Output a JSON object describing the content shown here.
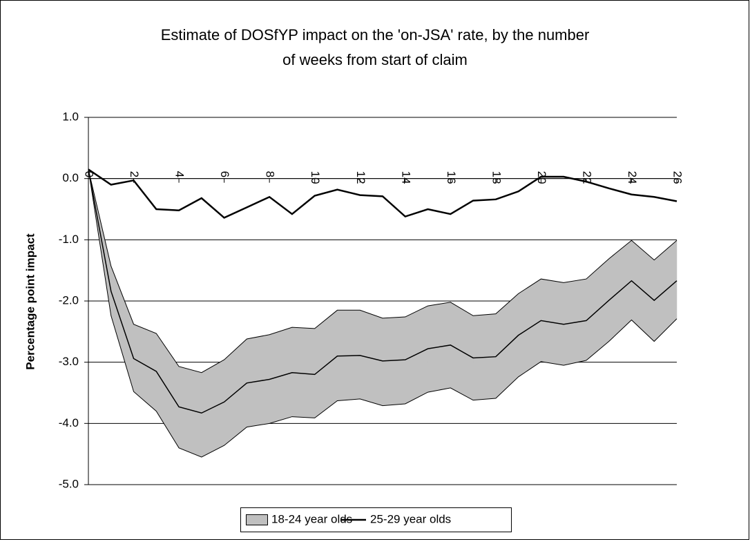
{
  "chart_data": {
    "type": "band-line",
    "title": "Estimate of DOSfYP impact on the 'on-JSA' rate, by the number of weeks from start of claim",
    "y_label": "Percentage point impact",
    "x": [
      0,
      1,
      2,
      3,
      4,
      5,
      6,
      7,
      8,
      9,
      10,
      11,
      12,
      13,
      14,
      15,
      16,
      17,
      18,
      19,
      20,
      21,
      22,
      23,
      24,
      25,
      26
    ],
    "xlim": [
      0,
      26
    ],
    "xticks": [
      0,
      2,
      4,
      6,
      8,
      10,
      12,
      14,
      16,
      18,
      20,
      22,
      24,
      26
    ],
    "ylim": [
      -5,
      1
    ],
    "yticks": [
      {
        "value": -5,
        "label": "-5.0"
      },
      {
        "value": -4,
        "label": "-4.0"
      },
      {
        "value": -3,
        "label": "-3.0"
      },
      {
        "value": -2,
        "label": "-2.0"
      },
      {
        "value": -1,
        "label": "-1.0"
      },
      {
        "value": 0,
        "label": "0.0"
      },
      {
        "value": 1,
        "label": "1.0"
      }
    ],
    "grid": true,
    "legend": "bottom",
    "series": [
      {
        "name": "18-24 year olds",
        "color": "#c0c0c0",
        "values": [
          0.15,
          -1.84,
          -2.94,
          -3.15,
          -3.73,
          -3.83,
          -3.65,
          -3.34,
          -3.28,
          -3.17,
          -3.2,
          -2.9,
          -2.89,
          -2.98,
          -2.96,
          -2.78,
          -2.72,
          -2.93,
          -2.91,
          -2.56,
          -2.32,
          -2.38,
          -2.32,
          -1.99,
          -1.67,
          -1.99,
          -1.67
        ],
        "upper": [
          0.15,
          -1.43,
          -2.38,
          -2.53,
          -3.07,
          -3.17,
          -2.96,
          -2.62,
          -2.55,
          -2.43,
          -2.45,
          -2.15,
          -2.15,
          -2.28,
          -2.26,
          -2.08,
          -2.02,
          -2.24,
          -2.21,
          -1.88,
          -1.64,
          -1.7,
          -1.64,
          -1.31,
          -1.01,
          -1.33,
          -1.01
        ],
        "lower": [
          0.15,
          -2.24,
          -3.48,
          -3.8,
          -4.4,
          -4.55,
          -4.36,
          -4.06,
          -4.0,
          -3.89,
          -3.91,
          -3.63,
          -3.6,
          -3.71,
          -3.68,
          -3.49,
          -3.42,
          -3.62,
          -3.59,
          -3.24,
          -2.99,
          -3.05,
          -2.97,
          -2.66,
          -2.31,
          -2.66,
          -2.29
        ]
      },
      {
        "name": "25-29 year olds",
        "color": "#000000",
        "values": [
          0.15,
          -0.1,
          -0.03,
          -0.5,
          -0.52,
          -0.32,
          -0.64,
          -0.47,
          -0.3,
          -0.58,
          -0.28,
          -0.18,
          -0.27,
          -0.29,
          -0.62,
          -0.5,
          -0.58,
          -0.36,
          -0.34,
          -0.21,
          0.03,
          0.03,
          -0.05,
          -0.16,
          -0.26,
          -0.3,
          -0.37
        ]
      }
    ]
  }
}
